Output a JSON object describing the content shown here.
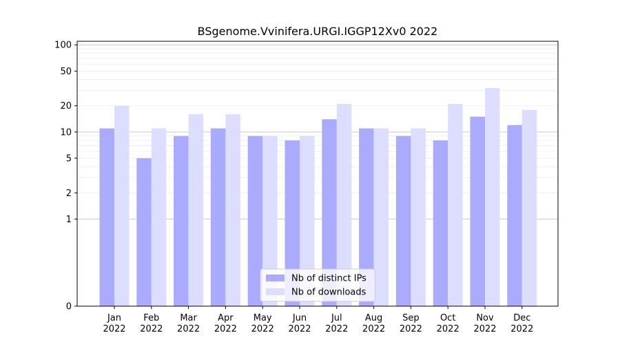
{
  "chart_data": {
    "type": "bar",
    "title": "BSgenome.Vvinifera.URGI.IGGP12Xv0 2022",
    "xlabel": "",
    "ylabel": "",
    "y_scale": "symlog",
    "ylim": [
      0,
      110
    ],
    "yticks": [
      0,
      1,
      2,
      5,
      10,
      20,
      50,
      100
    ],
    "grid": true,
    "legend_position": "lower-center",
    "categories": [
      {
        "month": "Jan",
        "year": "2022"
      },
      {
        "month": "Feb",
        "year": "2022"
      },
      {
        "month": "Mar",
        "year": "2022"
      },
      {
        "month": "Apr",
        "year": "2022"
      },
      {
        "month": "May",
        "year": "2022"
      },
      {
        "month": "Jun",
        "year": "2022"
      },
      {
        "month": "Jul",
        "year": "2022"
      },
      {
        "month": "Aug",
        "year": "2022"
      },
      {
        "month": "Sep",
        "year": "2022"
      },
      {
        "month": "Oct",
        "year": "2022"
      },
      {
        "month": "Nov",
        "year": "2022"
      },
      {
        "month": "Dec",
        "year": "2022"
      }
    ],
    "series": [
      {
        "name": "Nb of distinct IPs",
        "color": "#aaaaff",
        "values": [
          11,
          5,
          9,
          11,
          9,
          8,
          14,
          11,
          9,
          8,
          15,
          12
        ]
      },
      {
        "name": "Nb of downloads",
        "color": "#ddddff",
        "values": [
          20,
          11,
          16,
          16,
          9,
          9,
          21,
          11,
          11,
          21,
          32,
          18
        ]
      }
    ]
  }
}
